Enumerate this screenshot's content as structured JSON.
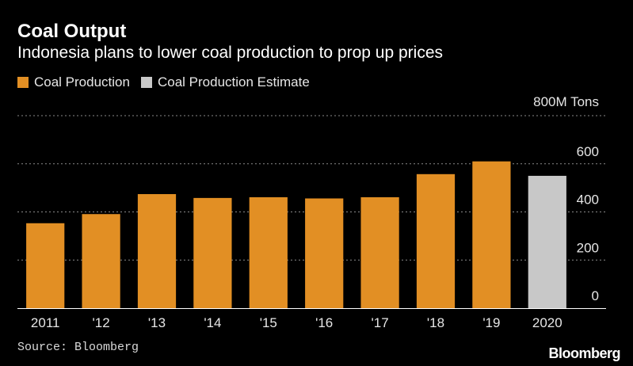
{
  "header": {
    "title": "Coal Output",
    "subtitle": "Indonesia plans to lower coal production to prop up prices"
  },
  "footer": {
    "source": "Source: Bloomberg",
    "logo": "Bloomberg"
  },
  "colors": {
    "background": "#000000",
    "actual": "#e28f24",
    "estimate": "#c8c8c8",
    "grid": "#8a8a8a",
    "axis": "#ffffff"
  },
  "chart_data": {
    "type": "bar",
    "title": "Coal Output",
    "subtitle": "Indonesia plans to lower coal production to prop up prices",
    "categories": [
      "2011",
      "'12",
      "'13",
      "'14",
      "'15",
      "'16",
      "'17",
      "'18",
      "'19",
      "2020"
    ],
    "series": [
      {
        "name": "Coal Production",
        "values": [
          353,
          391,
          474,
          458,
          461,
          456,
          461,
          557,
          610,
          null
        ]
      },
      {
        "name": "Coal Production Estimate",
        "values": [
          null,
          null,
          null,
          null,
          null,
          null,
          null,
          null,
          null,
          550
        ]
      }
    ],
    "y_unit_label": "800M Tons",
    "y_ticks": [
      "0",
      "200",
      "400",
      "600"
    ],
    "ylim": [
      0,
      800
    ],
    "grid": true,
    "legend_position": "top-left"
  }
}
